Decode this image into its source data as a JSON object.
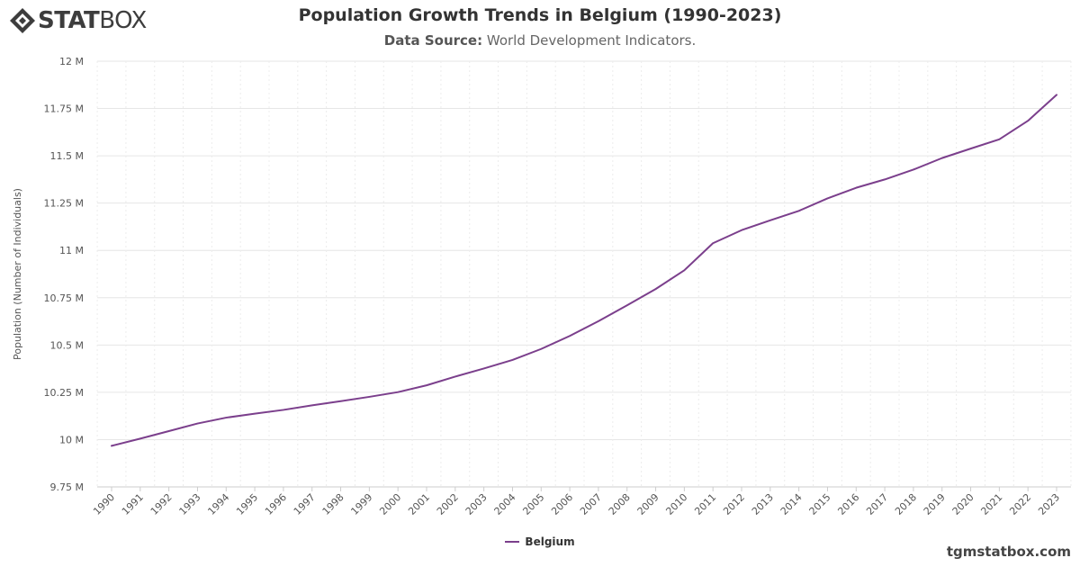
{
  "logo": {
    "text_stat": "STAT",
    "text_box": "BOX"
  },
  "header": {
    "title": "Population Growth Trends in Belgium (1990-2023)",
    "source_label": "Data Source:",
    "source_value": "World Development Indicators."
  },
  "watermark": "tgmstatbox.com",
  "chart_data": {
    "type": "line",
    "title": "Population Growth Trends in Belgium (1990-2023)",
    "xlabel": "",
    "ylabel": "Population (Number of Individuals)",
    "ylim": [
      9750000,
      12000000
    ],
    "y_ticks": [
      9750000,
      10000000,
      10250000,
      10500000,
      10750000,
      11000000,
      11250000,
      11500000,
      11750000,
      12000000
    ],
    "y_tick_labels": [
      "9.75 M",
      "10 M",
      "10.25 M",
      "10.5 M",
      "10.75 M",
      "11 M",
      "11.25 M",
      "11.5 M",
      "11.75 M",
      "12 M"
    ],
    "categories": [
      "1990",
      "1991",
      "1992",
      "1993",
      "1994",
      "1995",
      "1996",
      "1997",
      "1998",
      "1999",
      "2000",
      "2001",
      "2002",
      "2003",
      "2004",
      "2005",
      "2006",
      "2007",
      "2008",
      "2009",
      "2010",
      "2011",
      "2012",
      "2013",
      "2014",
      "2015",
      "2016",
      "2017",
      "2018",
      "2019",
      "2020",
      "2021",
      "2022",
      "2023"
    ],
    "series": [
      {
        "name": "Belgium",
        "color": "#7b3f8c",
        "values": [
          9967000,
          10005000,
          10045000,
          10085000,
          10116000,
          10137000,
          10157000,
          10181000,
          10203000,
          10226000,
          10251000,
          10287000,
          10333000,
          10376000,
          10421000,
          10479000,
          10548000,
          10626000,
          10710000,
          10796000,
          10895000,
          11038000,
          11107000,
          11159000,
          11209000,
          11275000,
          11331000,
          11375000,
          11427000,
          11488000,
          11538000,
          11587000,
          11685000,
          11822000
        ]
      }
    ],
    "grid": true,
    "legend_position": "bottom-center"
  }
}
